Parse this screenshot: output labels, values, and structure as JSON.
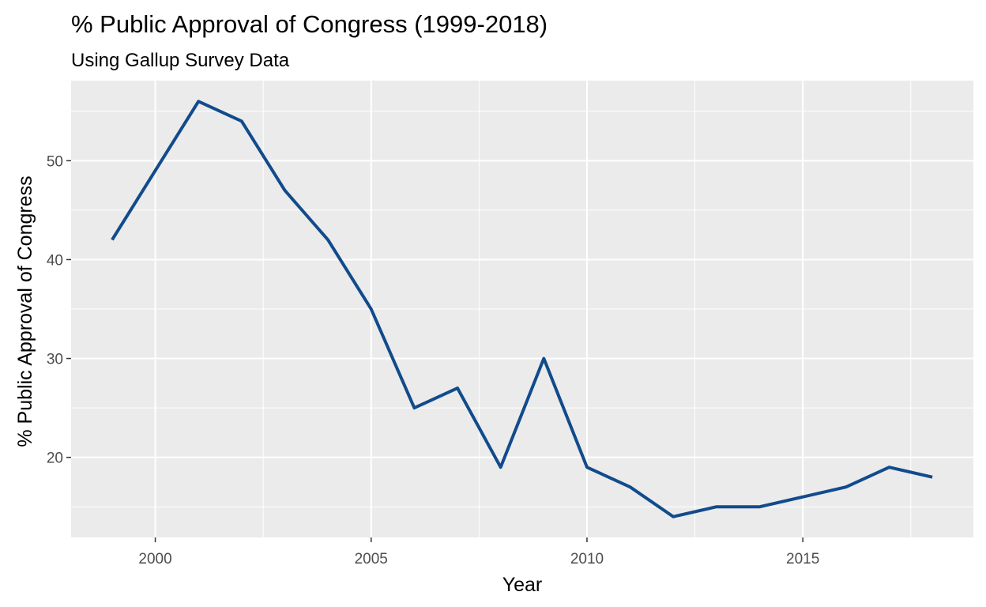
{
  "chart_data": {
    "type": "line",
    "title": "% Public Approval of Congress (1999-2018)",
    "subtitle": "Using Gallup Survey Data",
    "xlabel": "Year",
    "ylabel": "% Public Approval of Congress",
    "xlim": [
      1998.05,
      2018.95
    ],
    "ylim": [
      11.9,
      58.1
    ],
    "x_ticks": [
      2000,
      2005,
      2010,
      2015
    ],
    "y_ticks": [
      20,
      30,
      40,
      50
    ],
    "x_tick_labels": [
      "2000",
      "2005",
      "2010",
      "2015"
    ],
    "y_tick_labels": [
      "20",
      "30",
      "40",
      "50"
    ],
    "grid": true,
    "legend": "none",
    "line_color": "#114b8c",
    "panel_background": "#ebebeb",
    "grid_color": "#ffffff",
    "x": [
      1999,
      2000,
      2001,
      2002,
      2003,
      2004,
      2005,
      2006,
      2007,
      2008,
      2009,
      2010,
      2011,
      2012,
      2013,
      2014,
      2015,
      2016,
      2017,
      2018
    ],
    "values": [
      42,
      49,
      56,
      54,
      47,
      42,
      35,
      25,
      27,
      19,
      30,
      19,
      17,
      14,
      15,
      15,
      16,
      17,
      19,
      18
    ]
  }
}
